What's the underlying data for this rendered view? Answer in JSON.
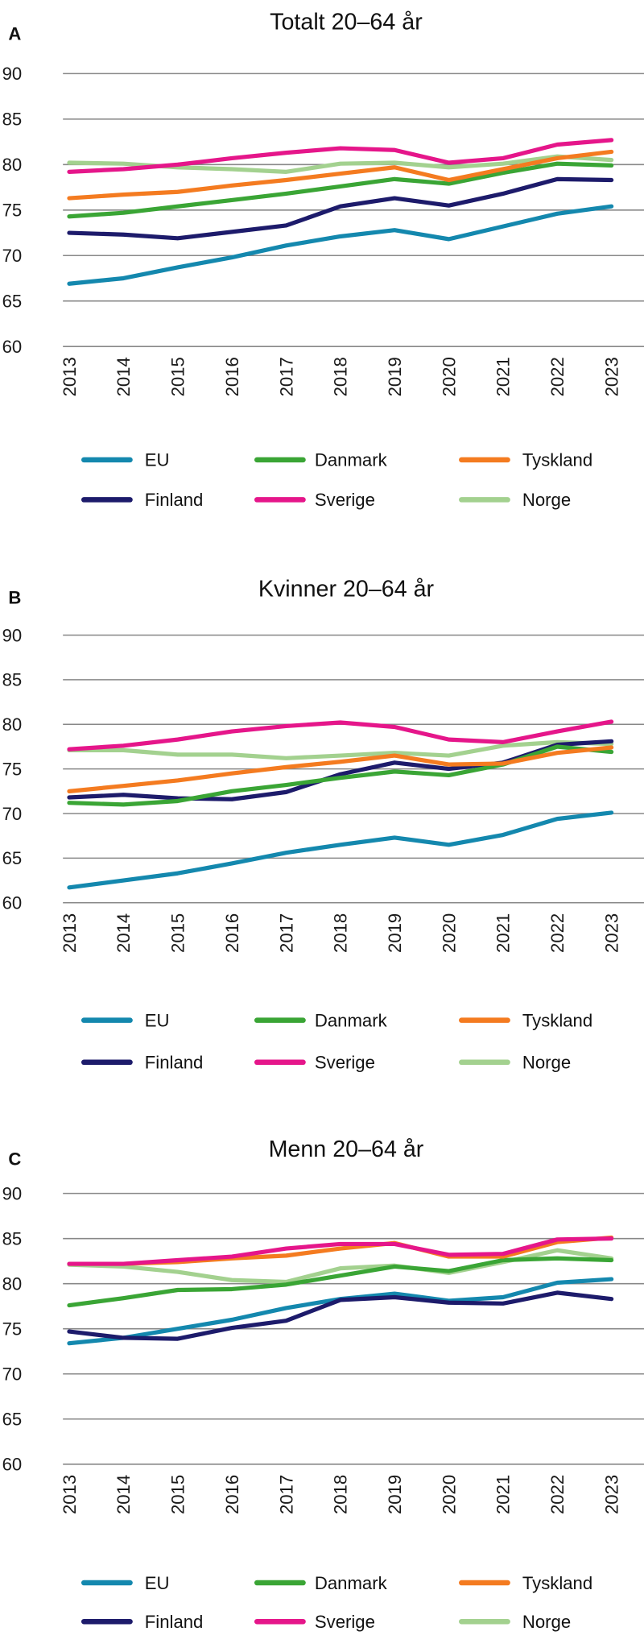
{
  "colors": {
    "EU": "#1488ae",
    "Danmark": "#3aa535",
    "Tyskland": "#f47b20",
    "Finland": "#1d1b6b",
    "Sverige": "#e5168a",
    "Norge": "#a3d18f"
  },
  "legend_order": [
    "EU",
    "Danmark",
    "Tyskland",
    "Finland",
    "Sverige",
    "Norge"
  ],
  "chart_data": [
    {
      "type": "line",
      "panel": "A",
      "title": "Totalt 20–64 år",
      "categories": [
        "2013",
        "2014",
        "2015",
        "2016",
        "2017",
        "2018",
        "2019",
        "2020",
        "2021",
        "2022",
        "2023"
      ],
      "ylim": [
        60,
        90
      ],
      "yticks": [
        60,
        65,
        70,
        75,
        80,
        85,
        90
      ],
      "grid": true,
      "legend": "bottom",
      "series": [
        {
          "name": "EU",
          "values": [
            66.9,
            67.5,
            68.7,
            69.8,
            71.1,
            72.1,
            72.8,
            71.8,
            73.2,
            74.6,
            75.4
          ]
        },
        {
          "name": "Danmark",
          "values": [
            74.3,
            74.7,
            75.4,
            76.1,
            76.8,
            77.6,
            78.4,
            77.9,
            79.1,
            80.1,
            79.9
          ]
        },
        {
          "name": "Tyskland",
          "values": [
            76.3,
            76.7,
            77.0,
            77.7,
            78.3,
            79.0,
            79.7,
            78.3,
            79.5,
            80.7,
            81.4
          ]
        },
        {
          "name": "Finland",
          "values": [
            72.5,
            72.3,
            71.9,
            72.6,
            73.3,
            75.4,
            76.3,
            75.5,
            76.8,
            78.4,
            78.3
          ]
        },
        {
          "name": "Sverige",
          "values": [
            79.2,
            79.5,
            80.0,
            80.7,
            81.3,
            81.8,
            81.6,
            80.2,
            80.7,
            82.2,
            82.7
          ]
        },
        {
          "name": "Norge",
          "values": [
            80.2,
            80.1,
            79.7,
            79.5,
            79.2,
            80.1,
            80.2,
            79.7,
            80.1,
            80.9,
            80.5
          ]
        }
      ]
    },
    {
      "type": "line",
      "panel": "B",
      "title": "Kvinner 20–64 år",
      "categories": [
        "2013",
        "2014",
        "2015",
        "2016",
        "2017",
        "2018",
        "2019",
        "2020",
        "2021",
        "2022",
        "2023"
      ],
      "ylim": [
        60,
        90
      ],
      "yticks": [
        60,
        65,
        70,
        75,
        80,
        85,
        90
      ],
      "grid": true,
      "legend": "bottom",
      "series": [
        {
          "name": "EU",
          "values": [
            61.7,
            62.5,
            63.3,
            64.4,
            65.6,
            66.5,
            67.3,
            66.5,
            67.6,
            69.4,
            70.1
          ]
        },
        {
          "name": "Danmark",
          "values": [
            71.2,
            71.0,
            71.4,
            72.5,
            73.2,
            74.0,
            74.7,
            74.3,
            75.5,
            77.5,
            76.9
          ]
        },
        {
          "name": "Tyskland",
          "values": [
            72.5,
            73.1,
            73.7,
            74.5,
            75.2,
            75.8,
            76.5,
            75.5,
            75.6,
            76.8,
            77.4
          ]
        },
        {
          "name": "Finland",
          "values": [
            71.8,
            72.1,
            71.7,
            71.6,
            72.4,
            74.4,
            75.7,
            75.0,
            75.7,
            77.7,
            78.1
          ]
        },
        {
          "name": "Sverige",
          "values": [
            77.2,
            77.6,
            78.3,
            79.2,
            79.8,
            80.2,
            79.7,
            78.3,
            78.0,
            79.2,
            80.3
          ]
        },
        {
          "name": "Norge",
          "values": [
            77.1,
            77.1,
            76.6,
            76.6,
            76.2,
            76.5,
            76.8,
            76.5,
            77.6,
            78.0,
            77.8
          ]
        }
      ]
    },
    {
      "type": "line",
      "panel": "C",
      "title": "Menn 20–64 år",
      "categories": [
        "2013",
        "2014",
        "2015",
        "2016",
        "2017",
        "2018",
        "2019",
        "2020",
        "2021",
        "2022",
        "2023"
      ],
      "ylim": [
        60,
        90
      ],
      "yticks": [
        60,
        65,
        70,
        75,
        80,
        85,
        90
      ],
      "grid": true,
      "legend": "bottom",
      "series": [
        {
          "name": "EU",
          "values": [
            73.4,
            74.0,
            75.0,
            76.0,
            77.3,
            78.3,
            78.9,
            78.1,
            78.5,
            80.1,
            80.5
          ]
        },
        {
          "name": "Danmark",
          "values": [
            77.6,
            78.4,
            79.3,
            79.4,
            79.9,
            80.9,
            81.9,
            81.4,
            82.6,
            82.8,
            82.6
          ]
        },
        {
          "name": "Tyskland",
          "values": [
            82.2,
            82.2,
            82.4,
            82.8,
            83.1,
            83.9,
            84.5,
            83.0,
            83.0,
            84.6,
            85.1
          ]
        },
        {
          "name": "Finland",
          "values": [
            74.7,
            74.0,
            73.9,
            75.1,
            75.9,
            78.2,
            78.5,
            77.9,
            77.8,
            79.0,
            78.3
          ]
        },
        {
          "name": "Sverige",
          "values": [
            82.2,
            82.2,
            82.6,
            83.0,
            83.9,
            84.4,
            84.4,
            83.2,
            83.3,
            84.9,
            85.0
          ]
        },
        {
          "name": "Norge",
          "values": [
            82.1,
            81.9,
            81.3,
            80.4,
            80.2,
            81.7,
            82.0,
            81.2,
            82.4,
            83.7,
            82.8
          ]
        }
      ]
    }
  ]
}
